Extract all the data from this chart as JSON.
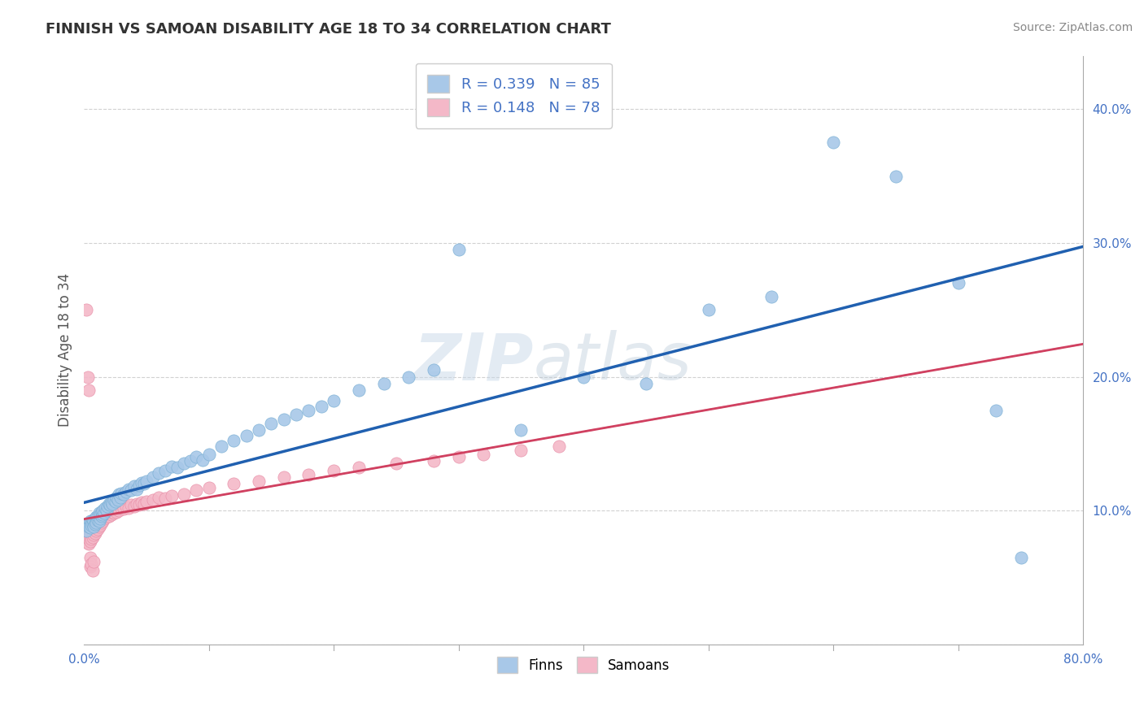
{
  "title": "FINNISH VS SAMOAN DISABILITY AGE 18 TO 34 CORRELATION CHART",
  "source_text": "Source: ZipAtlas.com",
  "ylabel": "Disability Age 18 to 34",
  "xlim": [
    0.0,
    0.8
  ],
  "ylim": [
    0.0,
    0.44
  ],
  "finn_color": "#a8c8e8",
  "finn_edge_color": "#7aafd4",
  "samoan_color": "#f4b8c8",
  "samoan_edge_color": "#e890a8",
  "trend_finn_color": "#2060b0",
  "trend_samoan_color": "#d04060",
  "trend_finn_dashed_color": "#a0b8d8",
  "trend_samoan_dashed_color": "#e8a0b0",
  "watermark_zip": "ZIP",
  "watermark_atlas": "atlas",
  "legend_r_finn": "R = 0.339",
  "legend_n_finn": "N = 85",
  "legend_r_samoan": "R = 0.148",
  "legend_n_samoan": "N = 78",
  "finns_x": [
    0.002,
    0.003,
    0.004,
    0.005,
    0.005,
    0.006,
    0.006,
    0.007,
    0.007,
    0.008,
    0.008,
    0.009,
    0.009,
    0.01,
    0.01,
    0.011,
    0.011,
    0.012,
    0.012,
    0.013,
    0.013,
    0.014,
    0.014,
    0.015,
    0.015,
    0.016,
    0.017,
    0.018,
    0.019,
    0.02,
    0.021,
    0.022,
    0.023,
    0.024,
    0.025,
    0.026,
    0.027,
    0.028,
    0.029,
    0.03,
    0.032,
    0.034,
    0.036,
    0.038,
    0.04,
    0.042,
    0.044,
    0.046,
    0.048,
    0.05,
    0.055,
    0.06,
    0.065,
    0.07,
    0.075,
    0.08,
    0.085,
    0.09,
    0.095,
    0.1,
    0.11,
    0.12,
    0.13,
    0.14,
    0.15,
    0.16,
    0.17,
    0.18,
    0.19,
    0.2,
    0.22,
    0.24,
    0.26,
    0.28,
    0.3,
    0.35,
    0.4,
    0.45,
    0.5,
    0.55,
    0.6,
    0.65,
    0.7,
    0.73,
    0.75
  ],
  "finns_y": [
    0.085,
    0.09,
    0.088,
    0.092,
    0.087,
    0.091,
    0.089,
    0.093,
    0.09,
    0.092,
    0.088,
    0.094,
    0.09,
    0.095,
    0.091,
    0.093,
    0.096,
    0.092,
    0.098,
    0.094,
    0.097,
    0.096,
    0.099,
    0.097,
    0.1,
    0.098,
    0.102,
    0.1,
    0.103,
    0.105,
    0.104,
    0.106,
    0.105,
    0.108,
    0.107,
    0.11,
    0.108,
    0.112,
    0.11,
    0.113,
    0.112,
    0.114,
    0.116,
    0.115,
    0.118,
    0.116,
    0.119,
    0.121,
    0.12,
    0.122,
    0.125,
    0.128,
    0.13,
    0.133,
    0.132,
    0.135,
    0.137,
    0.14,
    0.138,
    0.142,
    0.148,
    0.152,
    0.156,
    0.16,
    0.165,
    0.168,
    0.172,
    0.175,
    0.178,
    0.182,
    0.19,
    0.195,
    0.2,
    0.205,
    0.295,
    0.16,
    0.2,
    0.195,
    0.25,
    0.26,
    0.375,
    0.35,
    0.27,
    0.175,
    0.065
  ],
  "samoans_x": [
    0.001,
    0.002,
    0.003,
    0.003,
    0.004,
    0.004,
    0.005,
    0.005,
    0.006,
    0.006,
    0.007,
    0.007,
    0.008,
    0.008,
    0.009,
    0.009,
    0.01,
    0.01,
    0.011,
    0.011,
    0.012,
    0.012,
    0.013,
    0.013,
    0.014,
    0.014,
    0.015,
    0.016,
    0.017,
    0.018,
    0.019,
    0.02,
    0.021,
    0.022,
    0.023,
    0.024,
    0.025,
    0.026,
    0.027,
    0.028,
    0.03,
    0.032,
    0.034,
    0.036,
    0.038,
    0.04,
    0.042,
    0.044,
    0.046,
    0.048,
    0.05,
    0.055,
    0.06,
    0.065,
    0.07,
    0.08,
    0.09,
    0.1,
    0.12,
    0.14,
    0.16,
    0.18,
    0.2,
    0.22,
    0.25,
    0.28,
    0.3,
    0.32,
    0.35,
    0.38,
    0.002,
    0.003,
    0.004,
    0.005,
    0.005,
    0.006,
    0.007,
    0.008
  ],
  "samoans_y": [
    0.082,
    0.078,
    0.076,
    0.08,
    0.075,
    0.079,
    0.077,
    0.081,
    0.079,
    0.083,
    0.08,
    0.084,
    0.082,
    0.086,
    0.083,
    0.087,
    0.085,
    0.089,
    0.086,
    0.09,
    0.088,
    0.092,
    0.089,
    0.093,
    0.091,
    0.095,
    0.092,
    0.094,
    0.096,
    0.095,
    0.097,
    0.096,
    0.098,
    0.097,
    0.099,
    0.098,
    0.1,
    0.099,
    0.101,
    0.1,
    0.102,
    0.101,
    0.103,
    0.102,
    0.104,
    0.103,
    0.105,
    0.104,
    0.106,
    0.105,
    0.107,
    0.108,
    0.11,
    0.109,
    0.111,
    0.112,
    0.115,
    0.117,
    0.12,
    0.122,
    0.125,
    0.127,
    0.13,
    0.132,
    0.135,
    0.137,
    0.14,
    0.142,
    0.145,
    0.148,
    0.25,
    0.2,
    0.19,
    0.065,
    0.058,
    0.06,
    0.055,
    0.062
  ]
}
